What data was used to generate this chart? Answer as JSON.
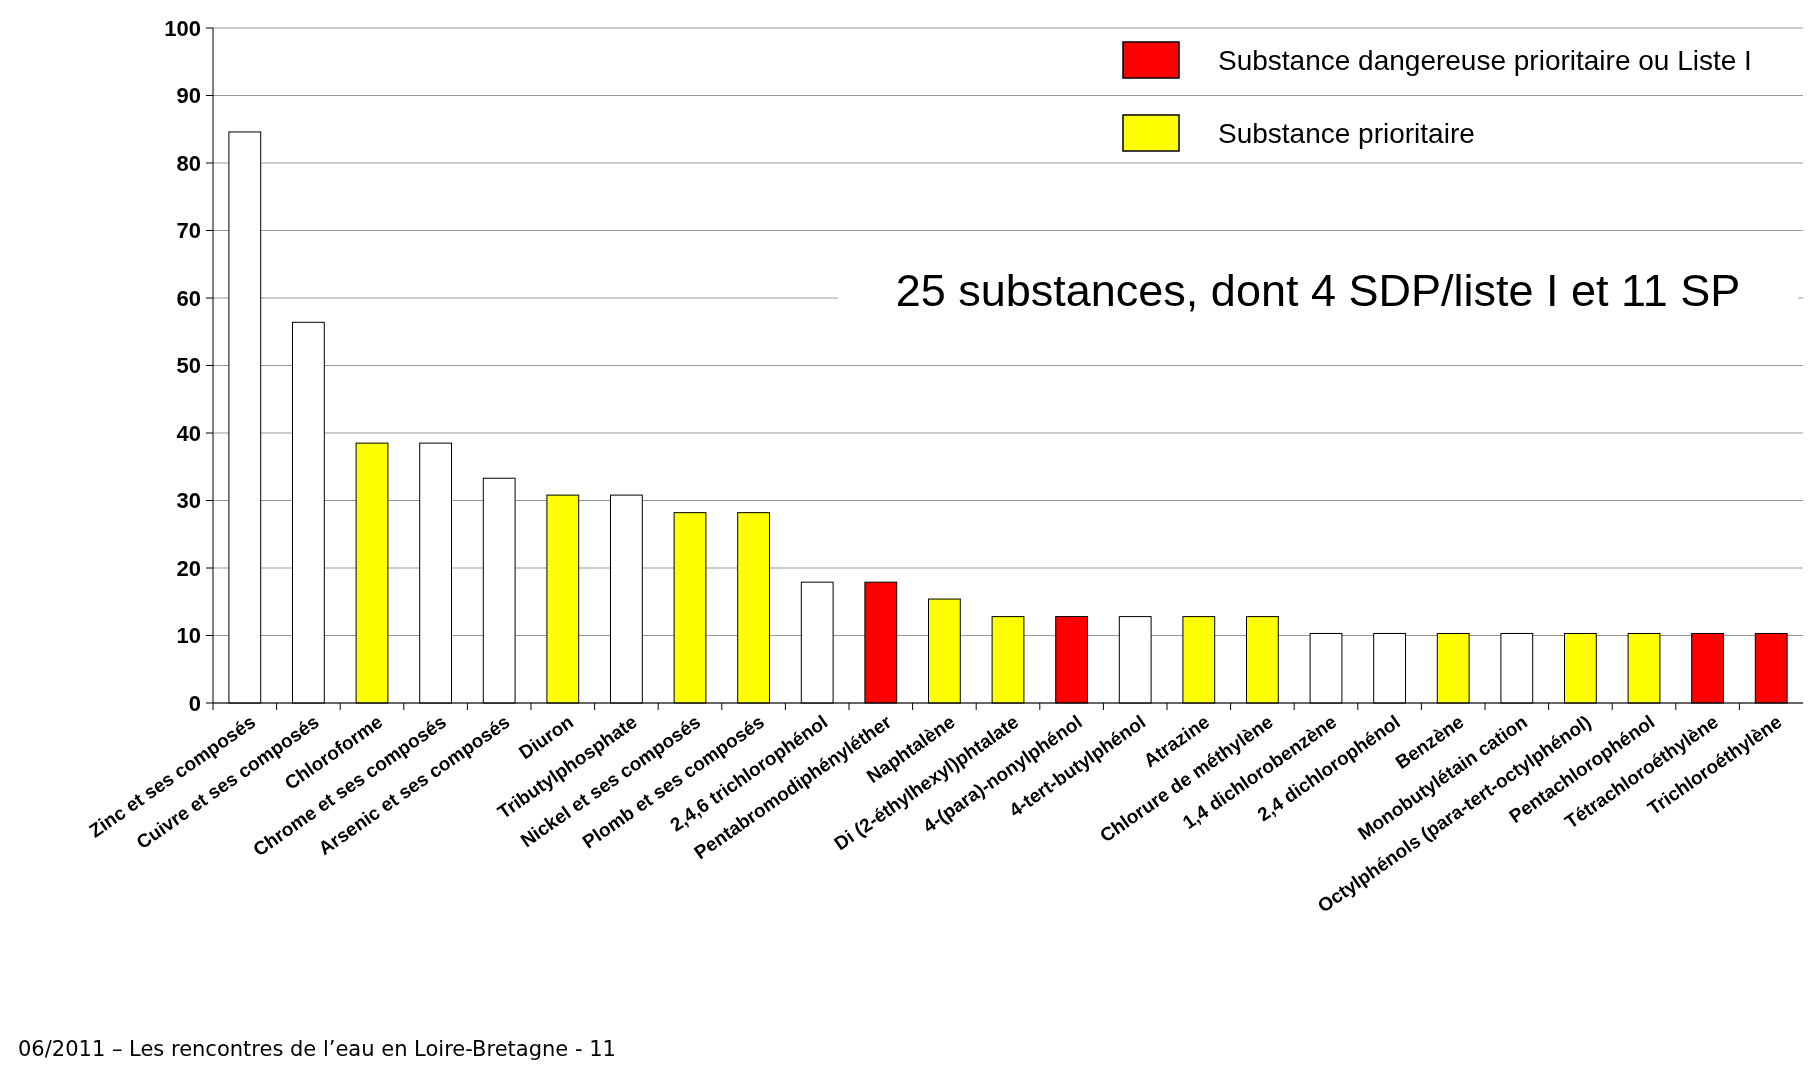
{
  "chart_data": {
    "type": "bar",
    "categories": [
      "Zinc et ses composés",
      "Cuivre et ses composés",
      "Chloroforme",
      "Chrome et ses composés",
      "Arsenic et ses composés",
      "Diuron",
      "Tributylphosphate",
      "Nickel et ses composés",
      "Plomb et ses composés",
      "2,4,6 trichlorophénol",
      "Pentabromodiphényléther",
      "Naphtalène",
      "Di (2-éthylhexyl)phtalate",
      "4-(para)-nonylphénol",
      "4-tert-butylphénol",
      "Atrazine",
      "Chlorure de méthylène",
      "1,4 dichlorobenzène",
      "2,4 dichlorophénol",
      "Benzène",
      "Monobutylétain cation",
      "Octylphénols (para-tert-octylphénol)",
      "Pentachlorophénol",
      "Tétrachloroéthylène",
      "Trichloroéthylène"
    ],
    "series": [
      {
        "color": "#ffffff",
        "values": [
          84.6,
          56.4,
          null,
          38.5,
          33.3,
          null,
          30.8,
          null,
          null,
          17.9,
          null,
          null,
          null,
          null,
          12.8,
          null,
          null,
          10.3,
          10.3,
          null,
          10.3,
          null,
          null,
          null,
          null
        ]
      },
      {
        "name": "Substance dangereuse prioritaire ou Liste I",
        "color": "#ff0000",
        "values": [
          null,
          null,
          null,
          null,
          null,
          null,
          null,
          null,
          null,
          null,
          17.9,
          null,
          null,
          12.8,
          null,
          null,
          null,
          null,
          null,
          null,
          null,
          null,
          null,
          10.3,
          10.3
        ]
      },
      {
        "name": "Substance prioritaire",
        "color": "#ffff00",
        "values": [
          null,
          null,
          38.5,
          null,
          null,
          30.8,
          null,
          28.2,
          28.2,
          null,
          null,
          15.4,
          12.8,
          null,
          null,
          12.8,
          12.8,
          null,
          null,
          10.3,
          null,
          10.3,
          10.3,
          null,
          null
        ]
      }
    ],
    "ylim": [
      0,
      100
    ],
    "yticks": [
      0,
      10,
      20,
      30,
      40,
      50,
      60,
      70,
      80,
      90,
      100
    ],
    "grid": "y",
    "legend": "top right",
    "annotations": [
      "25 substances, dont 4 SDP/liste I et 11 SP",
      "06/2011 – Les rencontres de l’eau en Loire-Bretagne - 11"
    ]
  }
}
